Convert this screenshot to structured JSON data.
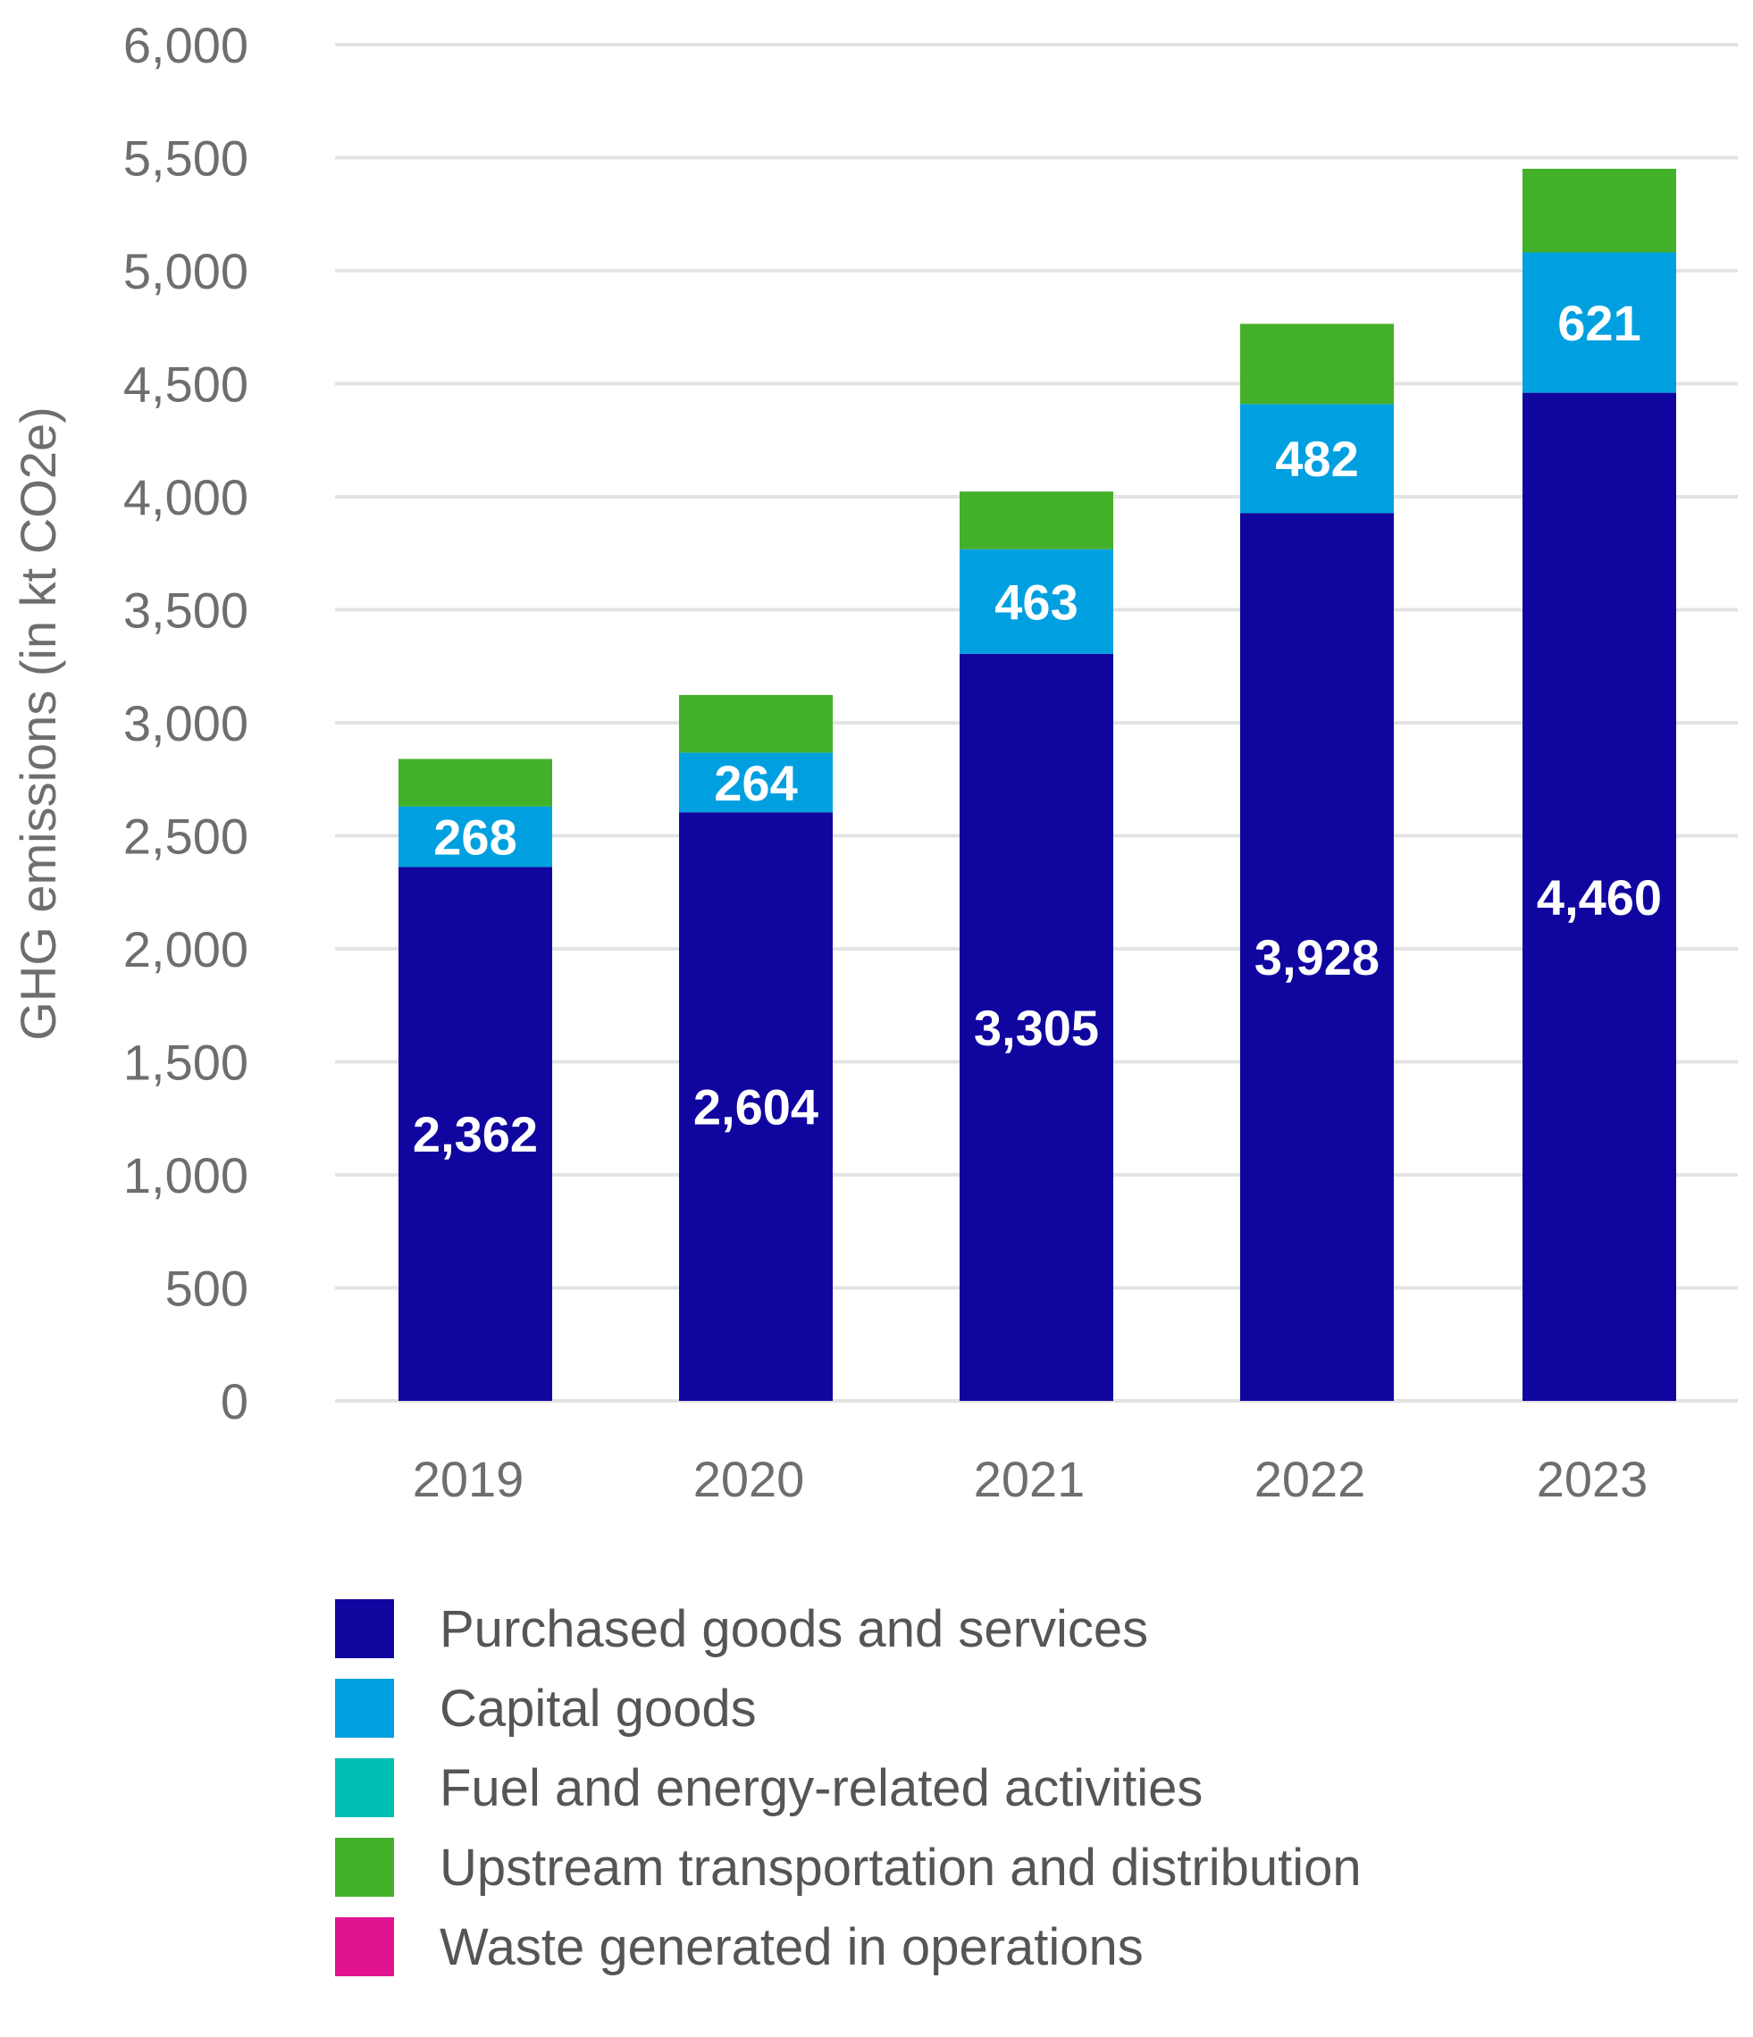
{
  "chart_data": {
    "type": "bar",
    "stacked": true,
    "ylabel": "GHG emissions (in kt CO2e)",
    "xlabel": "",
    "title": "",
    "ylim": [
      0,
      6000
    ],
    "yticks": [
      0,
      500,
      1000,
      1500,
      2000,
      2500,
      3000,
      3500,
      4000,
      4500,
      5000,
      5500,
      6000
    ],
    "ytick_labels": [
      "0",
      "500",
      "1,000",
      "1,500",
      "2,000",
      "2,500",
      "3,000",
      "3,500",
      "4,000",
      "4,500",
      "5,000",
      "5,500",
      "6,000"
    ],
    "grid": true,
    "legend_position": "bottom",
    "categories": [
      "2019",
      "2020",
      "2021",
      "2022",
      "2023"
    ],
    "series": [
      {
        "name": "Purchased goods and services",
        "color": "#10069f",
        "values": [
          2362,
          2604,
          3305,
          3928,
          4460
        ],
        "labels": [
          "2,362",
          "2,604",
          "3,305",
          "3,928",
          "4,460"
        ]
      },
      {
        "name": "Capital goods",
        "color": "#00a0e0",
        "values": [
          268,
          264,
          463,
          482,
          621
        ],
        "labels": [
          "268",
          "264",
          "463",
          "482",
          "621"
        ]
      },
      {
        "name": "Fuel and energy-related activities",
        "color": "#00bfb3",
        "values": [
          0,
          0,
          0,
          0,
          0
        ],
        "labels": [
          "",
          "",
          "",
          "",
          ""
        ]
      },
      {
        "name": "Upstream transportation and distribution",
        "color": "#43b02a",
        "values": [
          210,
          255,
          255,
          355,
          370
        ],
        "labels": [
          "",
          "",
          "",
          "",
          ""
        ]
      },
      {
        "name": "Waste generated in operations",
        "color": "#e1138f",
        "values": [
          0,
          0,
          0,
          0,
          0
        ],
        "labels": [
          "",
          "",
          "",
          "",
          ""
        ]
      }
    ]
  }
}
